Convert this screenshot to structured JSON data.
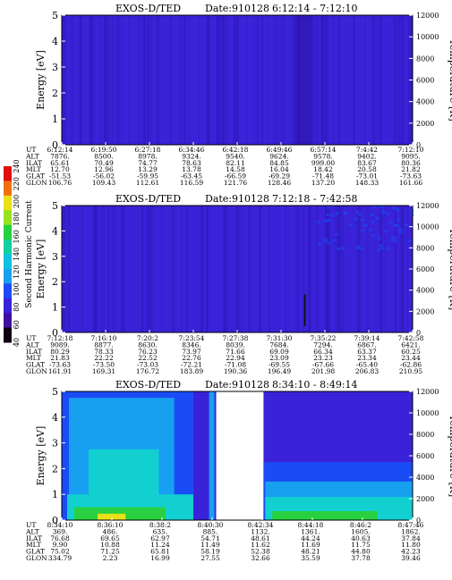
{
  "chart_data": [
    {
      "type": "heatmap",
      "title": "EXOS-D/TED",
      "date_label": "Date:910128",
      "time_range": "6:12:14 - 7:12:10",
      "ylabel": "Energy [eV]",
      "ylabel_right": "Temperature [K]",
      "ylim": [
        0,
        5
      ],
      "ylim_right": [
        0,
        12000
      ],
      "yticks": [
        "0",
        "1",
        "2",
        "3",
        "4",
        "5"
      ],
      "yticks_right": [
        "0",
        "2000",
        "4000",
        "6000",
        "8000",
        "10000",
        "12000"
      ],
      "row_labels": [
        "UT",
        "ALT",
        "ILAT",
        "MLT",
        "GLAT",
        "GLON"
      ],
      "columns": [
        [
          "6:12:14",
          "7876.",
          "65.61",
          "12.70",
          "-51.53",
          "106.76"
        ],
        [
          "6:19:50",
          "8500.",
          "70.49",
          "12.96",
          "-56.02",
          "109.43"
        ],
        [
          "6:27:18",
          "8978.",
          "74.77",
          "13.29",
          "-59.95",
          "112.61"
        ],
        [
          "6:34:46",
          "9324.",
          "78.63",
          "13.78",
          "-63.45",
          "116.59"
        ],
        [
          "6:42:18",
          "9540.",
          "82.11",
          "14.58",
          "-66.59",
          "121.76"
        ],
        [
          "6:49:46",
          "9624.",
          "84.85",
          "16.04",
          "-69.29",
          "128.46"
        ],
        [
          "6:57:14",
          "9578.",
          "999.00",
          "18.42",
          "-71.48",
          "137.20"
        ],
        [
          "7:4:42",
          "9402.",
          "83.67",
          "20.58",
          "-73.01",
          "148.33"
        ],
        [
          "7:12:10",
          "9095.",
          "80.36",
          "21.82",
          "-73.63",
          "161.66"
        ]
      ]
    },
    {
      "type": "heatmap",
      "title": "EXOS-D/TED",
      "date_label": "Date:910128",
      "time_range": "7:12:18 - 7:42:58",
      "ylabel": "Energy [eV]",
      "ylabel_right": "Temperature [K]",
      "ylim": [
        0,
        5
      ],
      "ylim_right": [
        0,
        12000
      ],
      "yticks": [
        "0",
        "1",
        "2",
        "3",
        "4",
        "5"
      ],
      "yticks_right": [
        "0",
        "2000",
        "4000",
        "6000",
        "8000",
        "10000",
        "12000"
      ],
      "row_labels": [
        "UT",
        "ALT",
        "ILAT",
        "MLT",
        "GLAT",
        "GLON"
      ],
      "columns": [
        [
          "7:12:18",
          "9089.",
          "80.29",
          "21.83",
          "-73.63",
          "161.91"
        ],
        [
          "7:16:10",
          "8877.",
          "78.33",
          "22.22",
          "-73.50",
          "169.31"
        ],
        [
          "7:20:2",
          "8630.",
          "76.23",
          "22.52",
          "-73.03",
          "176.72"
        ],
        [
          "7:23:54",
          "8346.",
          "73.97",
          "22.76",
          "-72.21",
          "183.89"
        ],
        [
          "7:27:38",
          "8039.",
          "71.66",
          "22.94",
          "-71.08",
          "190.36"
        ],
        [
          "7:31:30",
          "7684.",
          "69.09",
          "23.09",
          "-69.55",
          "196.49"
        ],
        [
          "7:35:22",
          "7294.",
          "66.34",
          "23.23",
          "-67.66",
          "201.98"
        ],
        [
          "7:39:14",
          "6867.",
          "63.37",
          "23.34",
          "-65.40",
          "206.83"
        ],
        [
          "7:42:58",
          "6421.",
          "60.25",
          "23.44",
          "-62.86",
          "210.95"
        ]
      ]
    },
    {
      "type": "heatmap",
      "title": "EXOS-D/TED",
      "date_label": "Date:910128",
      "time_range": "8:34:10 - 8:49:14",
      "ylabel": "Energy [eV]",
      "ylabel_right": "Temperature [K]",
      "ylim": [
        0,
        5
      ],
      "ylim_right": [
        0,
        12000
      ],
      "yticks": [
        "0",
        "1",
        "2",
        "3",
        "4",
        "5"
      ],
      "yticks_right": [
        "0",
        "2000",
        "4000",
        "6000",
        "8000",
        "10000",
        "12000"
      ],
      "row_labels": [
        "UT",
        "ALT",
        "ILAT",
        "MLT",
        "GLAT",
        "GLON"
      ],
      "columns": [
        [
          "8:34:10",
          "369.",
          "76.68",
          "9.90",
          "75.02",
          "334.79"
        ],
        [
          "8:36:10",
          "486.",
          "69.65",
          "10.88",
          "71.25",
          "2.23"
        ],
        [
          "8:38:2",
          "635.",
          "62.97",
          "11.24",
          "65.81",
          "16.99"
        ],
        [
          "8:40:30",
          "885.",
          "54.71",
          "11.49",
          "58.19",
          "27.55"
        ],
        [
          "8:42:34",
          "1132.",
          "48.61",
          "11.62",
          "52.38",
          "32.66"
        ],
        [
          "8:44:18",
          "1361.",
          "44.24",
          "11.69",
          "48.21",
          "35.59"
        ],
        [
          "8:46:2",
          "1605.",
          "40.63",
          "11.75",
          "44.80",
          "37.78"
        ],
        [
          "8:47:46",
          "1862.",
          "37.84",
          "11.80",
          "42.23",
          "39.46"
        ]
      ]
    }
  ],
  "colorbar": {
    "label": "Second Harmonic Current",
    "ticks": [
      "40",
      "60",
      "80",
      "100",
      "120",
      "140",
      "160",
      "180",
      "200",
      "220",
      "240"
    ]
  },
  "colors": {
    "background": "#3a22d8",
    "stripe": "#2d18b8",
    "blue": "#1a4cf5",
    "light_blue": "#18a0f0",
    "cyan": "#12d0d0",
    "green": "#28d040",
    "yellow": "#e8e018",
    "red": "#e01010"
  }
}
